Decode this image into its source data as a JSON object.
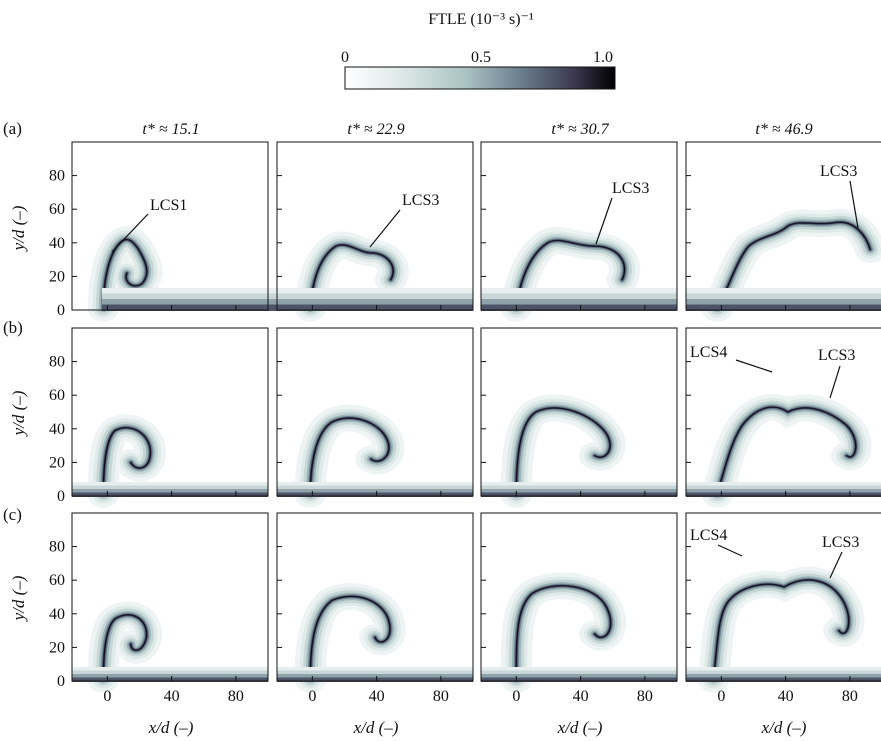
{
  "figure": {
    "colorbar": {
      "title": "FTLE (10⁻³ s)⁻¹",
      "ticks": [
        "0",
        "0.5",
        "1.0"
      ],
      "range": [
        0,
        1.0
      ],
      "colors": [
        "#ffffff",
        "#dfeae8",
        "#a9c2c3",
        "#6b7f8e",
        "#3b3850",
        "#000000"
      ]
    },
    "columns": [
      "t* ≈ 15.1",
      "t* ≈ 22.9",
      "t* ≈ 30.7",
      "t* ≈ 46.9"
    ],
    "rows": [
      "(a)",
      "(b)",
      "(c)"
    ],
    "y_axis": {
      "label": "y/d (–)",
      "ticks": [
        "0",
        "20",
        "40",
        "60",
        "80"
      ],
      "range": [
        0,
        100
      ]
    },
    "x_axis": {
      "label": "x/d (–)",
      "ticks": [
        "0",
        "40",
        "80"
      ],
      "range": [
        -22,
        100
      ]
    },
    "annotations": [
      {
        "row": 0,
        "col": 0,
        "text": "LCS1"
      },
      {
        "row": 0,
        "col": 1,
        "text": "LCS3"
      },
      {
        "row": 0,
        "col": 2,
        "text": "LCS3"
      },
      {
        "row": 0,
        "col": 3,
        "text": "LCS3"
      },
      {
        "row": 1,
        "col": 3,
        "text": "LCS4"
      },
      {
        "row": 1,
        "col": 3,
        "text": "LCS3"
      },
      {
        "row": 2,
        "col": 3,
        "text": "LCS4"
      },
      {
        "row": 2,
        "col": 3,
        "text": "LCS3"
      }
    ]
  }
}
